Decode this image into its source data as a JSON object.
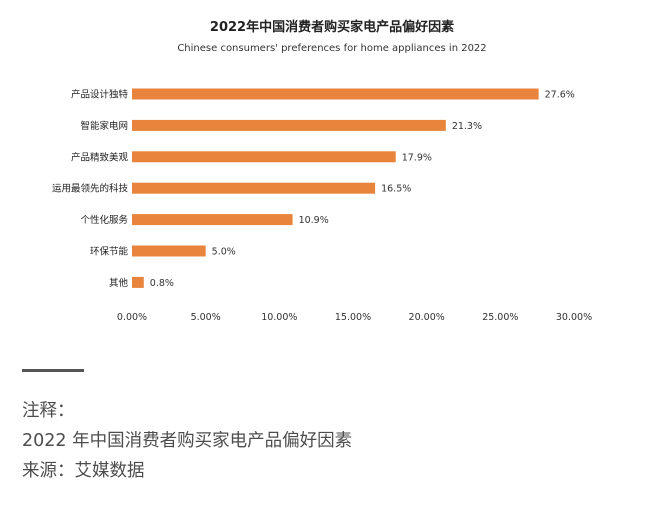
{
  "chart_data": {
    "type": "bar",
    "orientation": "horizontal",
    "title": "2022年中国消费者购买家电产品偏好因素",
    "subtitle": "Chinese consumers' preferences for home appliances in 2022",
    "categories": [
      "产品设计独特",
      "智能家电网",
      "产品精致美观",
      "运用最领先的科技",
      "个性化服务",
      "环保节能",
      "其他"
    ],
    "values": [
      27.6,
      21.3,
      17.9,
      16.5,
      10.9,
      5.0,
      0.8
    ],
    "value_labels": [
      "27.6%",
      "21.3%",
      "17.9%",
      "16.5%",
      "10.9%",
      "5.0%",
      "0.8%"
    ],
    "xlim": [
      0,
      30
    ],
    "x_ticks": [
      0,
      5,
      10,
      15,
      20,
      25,
      30
    ],
    "x_tick_labels": [
      "0.00%",
      "5.00%",
      "10.00%",
      "15.00%",
      "20.00%",
      "25.00%",
      "30.00%"
    ],
    "grid": false,
    "legend": "none",
    "bar_color": "#E8843C"
  },
  "notes": {
    "heading": "注释：",
    "line1": "2022 年中国消费者购买家电产品偏好因素",
    "line2": "来源：艾媒数据"
  }
}
